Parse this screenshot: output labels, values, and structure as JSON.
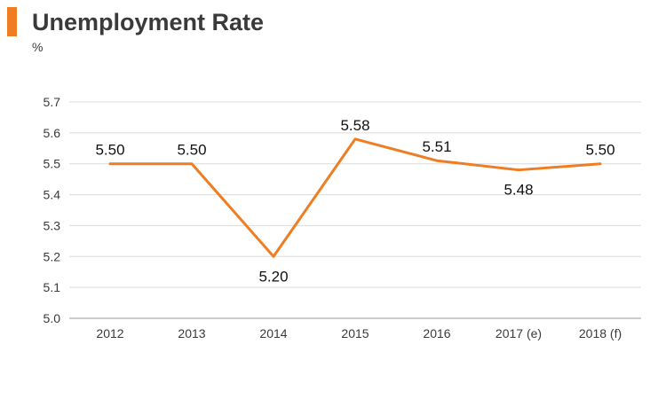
{
  "header": {
    "title": "Unemployment Rate",
    "unit": "%"
  },
  "colors": {
    "accent": "#ee7d23",
    "line": "#ee7d23"
  },
  "chart_data": {
    "type": "line",
    "title": "Unemployment Rate",
    "ylabel": "%",
    "xlabel": "",
    "categories": [
      "2012",
      "2013",
      "2014",
      "2015",
      "2016",
      "2017 (e)",
      "2018 (f)"
    ],
    "series": [
      {
        "values": [
          5.5,
          5.5,
          5.2,
          5.58,
          5.51,
          5.48,
          5.5
        ],
        "labels": [
          "5.50",
          "5.50",
          "5.20",
          "5.58",
          "5.51",
          "5.48",
          "5.50"
        ]
      }
    ],
    "ylim": [
      5.0,
      5.7
    ],
    "yticks": [
      "5.0",
      "5.1",
      "5.2",
      "5.3",
      "5.4",
      "5.5",
      "5.6",
      "5.7"
    ],
    "grid": true,
    "legend": "none"
  }
}
